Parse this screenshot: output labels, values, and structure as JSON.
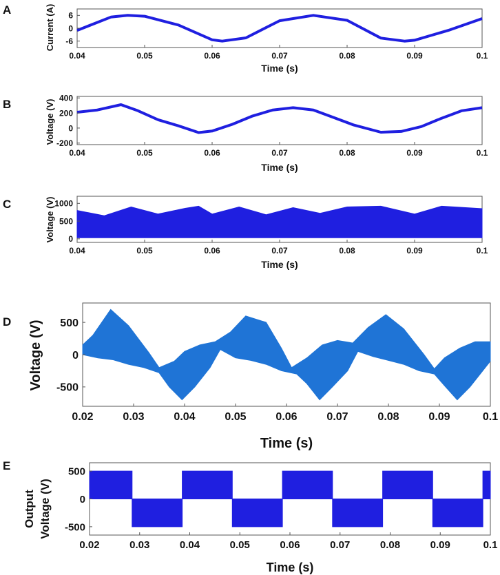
{
  "figure": {
    "colors": {
      "dark_blue": "#1f1fe0",
      "light_blue": "#1f74d6",
      "axis": "#111111"
    }
  },
  "chart_data": [
    {
      "panel": "A",
      "type": "line",
      "xlabel": "Time (s)",
      "ylabel": "Current (A)",
      "xlim": [
        0.04,
        0.1
      ],
      "ylim": [
        -9,
        9
      ],
      "xticks": [
        "0.04",
        "0.05",
        "0.06",
        "0.07",
        "0.08",
        "0.09",
        "0.1"
      ],
      "yticks": [
        "6",
        "0",
        "-6"
      ],
      "series": [
        {
          "name": "Current",
          "x": [
            0.04,
            0.045,
            0.0475,
            0.05,
            0.055,
            0.06,
            0.0615,
            0.065,
            0.07,
            0.075,
            0.08,
            0.085,
            0.0885,
            0.09,
            0.095,
            0.1
          ],
          "y": [
            -1,
            5.2,
            6,
            5.6,
            1.5,
            -5.4,
            -6,
            -4.5,
            3.5,
            6,
            3.7,
            -4.6,
            -6,
            -5.6,
            -1,
            4.5
          ]
        }
      ]
    },
    {
      "panel": "B",
      "type": "line",
      "xlabel": "Time (s)",
      "ylabel": "Voltage (V)",
      "xlim": [
        0.04,
        0.1
      ],
      "ylim": [
        -220,
        420
      ],
      "xticks": [
        "0.04",
        "0.05",
        "0.06",
        "0.07",
        "0.08",
        "0.09",
        "0.1"
      ],
      "yticks": [
        "400",
        "200",
        "0",
        "-200"
      ],
      "series": [
        {
          "name": "Voltage",
          "x": [
            0.04,
            0.043,
            0.0465,
            0.049,
            0.052,
            0.055,
            0.058,
            0.06,
            0.063,
            0.066,
            0.069,
            0.072,
            0.075,
            0.078,
            0.081,
            0.085,
            0.088,
            0.091,
            0.094,
            0.097,
            0.1
          ],
          "y": [
            210,
            240,
            310,
            230,
            110,
            30,
            -60,
            -40,
            50,
            160,
            240,
            270,
            240,
            140,
            40,
            -55,
            -45,
            20,
            130,
            230,
            270
          ]
        }
      ]
    },
    {
      "panel": "C",
      "type": "area",
      "xlabel": "Time (s)",
      "ylabel": "Voltage (V)",
      "xlim": [
        0.04,
        0.1
      ],
      "ylim": [
        -100,
        1200
      ],
      "xticks": [
        "0.04",
        "0.05",
        "0.06",
        "0.07",
        "0.08",
        "0.09",
        "0.1"
      ],
      "yticks": [
        "1000",
        "500",
        "0"
      ],
      "series": [
        {
          "name": "Upper envelope",
          "x": [
            0.04,
            0.044,
            0.048,
            0.052,
            0.056,
            0.058,
            0.06,
            0.064,
            0.068,
            0.072,
            0.076,
            0.08,
            0.085,
            0.09,
            0.094,
            0.1
          ],
          "y": [
            800,
            650,
            900,
            700,
            860,
            920,
            700,
            900,
            680,
            880,
            720,
            900,
            920,
            700,
            920,
            850
          ]
        },
        {
          "name": "Lower envelope",
          "x": [
            0.04,
            0.1
          ],
          "y": [
            30,
            30
          ]
        }
      ]
    },
    {
      "panel": "D",
      "type": "area",
      "xlabel": "Time (s)",
      "ylabel": "Voltage (V)",
      "xlim": [
        0.02,
        0.1
      ],
      "ylim": [
        -800,
        800
      ],
      "xticks": [
        "0.02",
        "0.03",
        "0.04",
        "0.05",
        "0.06",
        "0.07",
        "0.08",
        "0.09",
        "0.1"
      ],
      "yticks": [
        "500",
        "0",
        "-500"
      ],
      "series": [
        {
          "name": "Upper envelope",
          "x": [
            0.02,
            0.022,
            0.0255,
            0.029,
            0.033,
            0.035,
            0.038,
            0.04,
            0.043,
            0.046,
            0.049,
            0.052,
            0.056,
            0.059,
            0.061,
            0.064,
            0.067,
            0.07,
            0.073,
            0.076,
            0.0795,
            0.083,
            0.087,
            0.089,
            0.091,
            0.094,
            0.097,
            0.1
          ],
          "y": [
            150,
            300,
            700,
            450,
            30,
            -200,
            -100,
            50,
            150,
            200,
            350,
            600,
            500,
            100,
            -200,
            -50,
            150,
            220,
            180,
            420,
            620,
            400,
            0,
            -220,
            -50,
            100,
            200,
            200
          ]
        },
        {
          "name": "Lower envelope",
          "x": [
            0.02,
            0.023,
            0.026,
            0.029,
            0.032,
            0.035,
            0.037,
            0.0395,
            0.042,
            0.045,
            0.047,
            0.05,
            0.053,
            0.056,
            0.059,
            0.062,
            0.064,
            0.0665,
            0.069,
            0.072,
            0.074,
            0.077,
            0.08,
            0.083,
            0.086,
            0.089,
            0.091,
            0.0935,
            0.096,
            0.1
          ],
          "y": [
            0,
            -50,
            -80,
            -150,
            -200,
            -280,
            -500,
            -700,
            -500,
            -200,
            80,
            -50,
            -90,
            -150,
            -250,
            -300,
            -450,
            -700,
            -500,
            -250,
            50,
            -30,
            -90,
            -150,
            -250,
            -300,
            -480,
            -700,
            -500,
            -100
          ]
        }
      ]
    },
    {
      "panel": "E",
      "type": "area",
      "xlabel": "Time (s)",
      "ylabel": "Output Voltage (V)",
      "xlim": [
        0.02,
        0.1
      ],
      "ylim": [
        -650,
        650
      ],
      "xticks": [
        "0.02",
        "0.03",
        "0.04",
        "0.05",
        "0.06",
        "0.07",
        "0.08",
        "0.09",
        "0.1"
      ],
      "yticks": [
        "500",
        "0",
        "-500"
      ],
      "series": [
        {
          "name": "Square wave",
          "x": [
            0.02,
            0.0285,
            0.0285,
            0.0385,
            0.0385,
            0.0485,
            0.0485,
            0.0585,
            0.0585,
            0.0685,
            0.0685,
            0.0785,
            0.0785,
            0.0885,
            0.0885,
            0.0985,
            0.0985,
            0.1
          ],
          "y": [
            500,
            500,
            -500,
            -500,
            500,
            500,
            -500,
            -500,
            500,
            500,
            -500,
            -500,
            500,
            500,
            -500,
            -500,
            500,
            500
          ]
        }
      ]
    }
  ],
  "panels": {
    "labels": [
      "A",
      "B",
      "C",
      "D",
      "E"
    ],
    "titles": {
      "A": "Current (A)",
      "B": "Voltage (V)",
      "C": "Voltage (V)",
      "D": "Voltage (V)",
      "E_line1": "Output",
      "E_line2": "Voltage (V)"
    }
  }
}
